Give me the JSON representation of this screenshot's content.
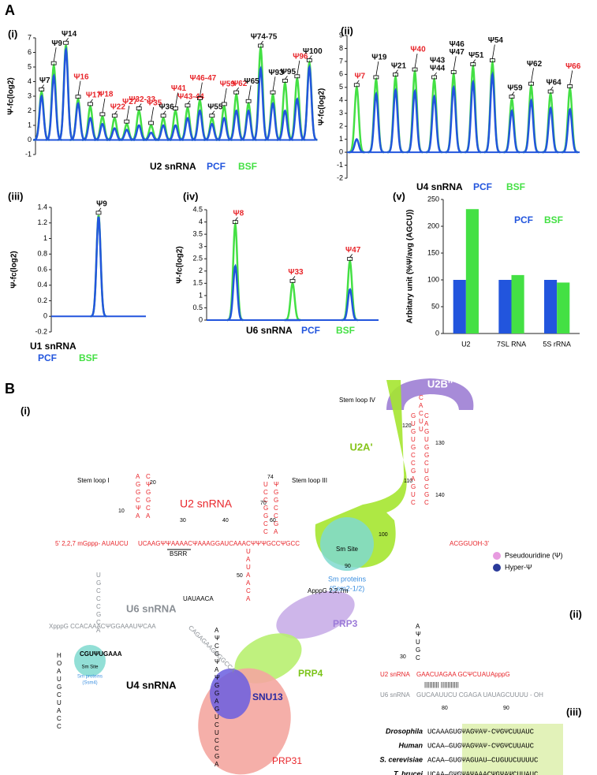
{
  "figure_label_a": "A",
  "chart_data": [
    {
      "type": "peak",
      "panel": "(i)",
      "annotation": "U2 snRNA",
      "ylabel": "Ψ-fc(log2)",
      "ylim": [
        -1,
        7
      ],
      "yticks": [
        -1,
        0,
        1,
        2,
        3,
        4,
        5,
        6,
        7
      ],
      "categories": [
        "Ψ7",
        "Ψ9",
        "Ψ14",
        "Ψ16",
        "Ψ17",
        "Ψ18",
        "Ψ22",
        "Ψ27",
        "Ψ32-33",
        "Ψ35",
        "Ψ36",
        "Ψ41",
        "Ψ43-44",
        "Ψ46-47",
        "Ψ55",
        "Ψ59",
        "Ψ62",
        "Ψ65",
        "Ψ74-75",
        "Ψ93",
        "Ψ95",
        "Ψ96",
        "Ψ100"
      ],
      "label_colors": [
        "#111",
        "#111",
        "#111",
        "#e8262b",
        "#e8262b",
        "#e8262b",
        "#e8262b",
        "#e8262b",
        "#e8262b",
        "#e8262b",
        "#111",
        "#e8262b",
        "#e8262b",
        "#e8262b",
        "#111",
        "#e8262b",
        "#e8262b",
        "#111",
        "#111",
        "#111",
        "#111",
        "#e8262b",
        "#111"
      ],
      "series": [
        {
          "name": "PCF",
          "color": "#2255dd",
          "values": [
            3.0,
            4.4,
            6.2,
            2.5,
            1.5,
            1.1,
            0.8,
            0.7,
            1.0,
            0.5,
            1.0,
            1.0,
            1.5,
            2.0,
            1.1,
            1.5,
            2.0,
            2.0,
            4.9,
            2.5,
            2.0,
            2.8,
            5.0
          ]
        },
        {
          "name": "BSF",
          "color": "#44e044",
          "values": [
            3.3,
            5.1,
            6.5,
            2.8,
            2.3,
            1.6,
            1.5,
            1.1,
            2.0,
            1.0,
            1.5,
            2.0,
            2.2,
            2.7,
            1.5,
            2.3,
            3.1,
            2.5,
            6.3,
            3.1,
            3.9,
            4.2,
            5.3
          ]
        }
      ]
    },
    {
      "type": "peak",
      "panel": "(ii)",
      "annotation": "U4 snRNA",
      "ylabel": "Ψ-fc(log2)",
      "ylim": [
        -2,
        9
      ],
      "yticks": [
        -2,
        -1,
        0,
        1,
        2,
        3,
        4,
        5,
        6,
        7,
        8,
        9
      ],
      "categories": [
        "Ψ7",
        "Ψ19",
        "Ψ21",
        "Ψ40",
        [
          "Ψ43",
          "Ψ44"
        ],
        [
          "Ψ46",
          "Ψ47"
        ],
        "Ψ51",
        "Ψ54",
        "Ψ59",
        "Ψ62",
        "Ψ64",
        "Ψ66"
      ],
      "label_colors": [
        "#e8262b",
        "#111",
        "#111",
        "#e8262b",
        "#111",
        "#111",
        "#111",
        "#111",
        "#111",
        "#111",
        "#111",
        "#e8262b"
      ],
      "series": [
        {
          "name": "PCF",
          "color": "#2255dd",
          "values": [
            1.0,
            4.5,
            4.8,
            4.7,
            4.3,
            5.0,
            5.4,
            6.0,
            3.2,
            4.0,
            3.4,
            3.3
          ]
        },
        {
          "name": "BSF",
          "color": "#44e044",
          "values": [
            5.0,
            5.6,
            5.8,
            6.2,
            5.6,
            6.0,
            6.6,
            6.9,
            4.1,
            5.1,
            4.5,
            4.9
          ]
        }
      ]
    },
    {
      "type": "peak",
      "panel": "(iii)",
      "annotation": "U1 snRNA",
      "ylabel": "Ψ-fc(log2)",
      "ylim": [
        -0.2,
        1.4
      ],
      "yticks": [
        -0.2,
        0,
        0.2,
        0.4,
        0.6,
        0.8,
        1,
        1.2,
        1.4
      ],
      "categories": [
        "Ψ9"
      ],
      "label_colors": [
        "#111"
      ],
      "series": [
        {
          "name": "PCF",
          "color": "#2255dd",
          "values": [
            1.28
          ]
        },
        {
          "name": "BSF",
          "color": "#44e044",
          "values": [
            1.3
          ]
        }
      ]
    },
    {
      "type": "peak",
      "panel": "(iv)",
      "annotation": "U6 snRNA",
      "ylabel": "Ψ-fc(log2)",
      "ylim": [
        0,
        4.5
      ],
      "yticks": [
        0,
        0.5,
        1,
        1.5,
        2,
        2.5,
        3,
        3.5,
        4,
        4.5
      ],
      "categories": [
        "Ψ8",
        "Ψ33",
        "Ψ47"
      ],
      "label_colors": [
        "#e8262b",
        "#e8262b",
        "#e8262b"
      ],
      "series": [
        {
          "name": "PCF",
          "color": "#2255dd",
          "values": [
            2.2,
            0,
            1.25
          ]
        },
        {
          "name": "BSF",
          "color": "#44e044",
          "values": [
            3.9,
            1.5,
            2.4
          ]
        }
      ]
    },
    {
      "type": "bar",
      "panel": "(v)",
      "ylabel": "Arbitary unit (%Ψ/avg (AGCU))",
      "ylim": [
        0,
        250
      ],
      "yticks": [
        0,
        50,
        100,
        150,
        200,
        250
      ],
      "categories": [
        "U2",
        "7SL RNA",
        "5S rRNA"
      ],
      "series": [
        {
          "name": "PCF",
          "color": "#2255dd",
          "values": [
            100,
            100,
            100
          ]
        },
        {
          "name": "BSF",
          "color": "#44e044",
          "values": [
            232,
            109,
            95
          ]
        }
      ]
    }
  ],
  "diagram": {
    "label": "B",
    "sub_i": "(i)",
    "sub_ii": "(ii)",
    "sub_iii": "(iii)",
    "u2b": "U2B''",
    "u2a": "U2A'",
    "stem4": "Stem loop IV",
    "stem1": "Stem loop I",
    "stem3": "Stem loop III",
    "stem2": "UAUAACA",
    "u2": "U2 snRNA",
    "u6": "U6 snRNA",
    "u4": "U4 snRNA",
    "u2_5": "5' 2,2,7 mGppp- AUAUCU",
    "u2_mid": "UCAAGΨΨAAAACΨAAAGGAUCAAACΨΨΨGCCΨGCC",
    "u2_3": "ACGGUOH-3'",
    "bsrr": "BSRR",
    "sm_site": "Sm Site",
    "sm_u2_1": "Sm proteins",
    "sm_u2_2": "(Ssm2-1/2)",
    "sm_u4_1": "Sm proteins",
    "sm_u4_2": "(Ssm4)",
    "legend_psi": "Pseudouridine (Ψ)",
    "legend_hyper": "Hyper-Ψ",
    "stem4_l": "GUGUGCCGAGUC",
    "stem4_r": "CAGUGGCUGCGC",
    "loop4": "CACUU",
    "stem1_l": "AGGCΨA",
    "stem1_r": "CΨGGCA",
    "stem3_l": "UCCGGCC",
    "stem3_r": "ΨGGCCGA",
    "u6_seq": "XpppG CCACAAACΨGGAAAUΨCAA",
    "u6_stem": "UGCCCGCA",
    "u4_sm": "CGUΨUGAAA",
    "u4_stem": "HOAUGCUACC",
    "core_stem": "AΨCGΨAΨGGAGUCUCCGA",
    "core_top": "CAGAGAAGAGGCCA",
    "appp": "ApppG 2,2,7m",
    "prp3": "PRP3",
    "prp4": "PRP4",
    "snu13": "SNU13",
    "prp31": "PRP31",
    "ii_u2": "U2 snRNA",
    "ii_u2_seq": "GAACUAGAA   GCΨCUAUApppG",
    "ii_u6": "U6 snRNA",
    "ii_u6_seq": "GUCAAUUCU   CGAGA   UAUAGCUUUU - OH",
    "ii_stem": "AΨUGC",
    "numbers": [
      "10",
      "20",
      "30",
      "40",
      "50",
      "60",
      "70",
      "74",
      "90",
      "100",
      "110",
      "120",
      "130",
      "140",
      "30",
      "80",
      "90"
    ],
    "table": [
      [
        "Drosophila",
        "UCAAAGUGΨAGΨAΨ-CΨGΨCUUAUC"
      ],
      [
        "Human",
        "UCAA—GUGΨAGΨAΨ-CΨGΨCUUAUC"
      ],
      [
        "S. cerevisiae",
        "ACAA—GUGΨAGUAU—CUGUUCUUUUC"
      ],
      [
        "T. brucei",
        "UCAA—GΨGΨAΨAAACΨGΨAΨCUUAUC"
      ]
    ]
  }
}
